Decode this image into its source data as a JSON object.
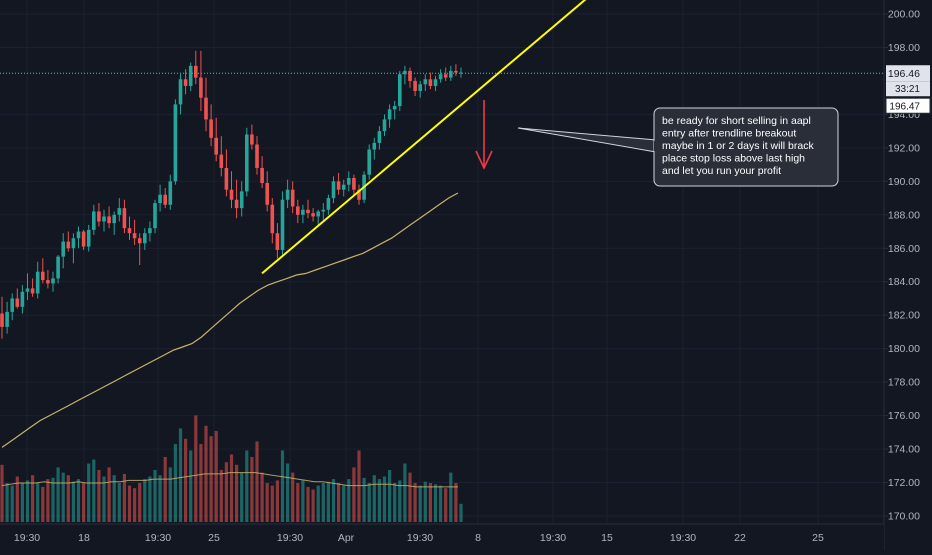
{
  "chart_data": {
    "type": "candlestick",
    "symbol": "AAPL",
    "ylim": [
      169.5,
      201.2
    ],
    "y_ticks": [
      "200.00",
      "198.00",
      "194.00",
      "192.00",
      "190.00",
      "188.00",
      "186.00",
      "184.00",
      "182.00",
      "180.00",
      "178.00",
      "176.00",
      "174.00",
      "172.00",
      "170.00"
    ],
    "x_ticks": [
      "19:30",
      "18",
      "19:30",
      "25",
      "19:30",
      "Apr",
      "19:30",
      "8",
      "19:30",
      "15",
      "19:30",
      "22",
      "25"
    ],
    "price_labels": {
      "last_price": "196.46",
      "countdown": "33:21",
      "ref_price": "196.47"
    },
    "annotation": [
      "be ready for short selling in aapl",
      "entry after trendline breakout",
      "maybe in 1 or 2 days it will brack",
      "place stop loss above last high",
      "and let you run your profit"
    ],
    "candles": [
      [
        182.1,
        183.1,
        180.6,
        181.3
      ],
      [
        181.3,
        182.8,
        180.9,
        182.2
      ],
      [
        182.2,
        183.3,
        181.7,
        183.0
      ],
      [
        183.0,
        183.6,
        182.4,
        182.5
      ],
      [
        182.5,
        183.8,
        182.1,
        183.4
      ],
      [
        183.4,
        184.5,
        182.9,
        183.6
      ],
      [
        183.6,
        184.2,
        183.1,
        183.3
      ],
      [
        183.3,
        185.2,
        183.0,
        184.6
      ],
      [
        184.6,
        185.4,
        183.9,
        184.1
      ],
      [
        184.1,
        184.7,
        183.6,
        183.9
      ],
      [
        183.9,
        184.6,
        183.4,
        184.2
      ],
      [
        184.2,
        185.6,
        183.9,
        185.5
      ],
      [
        185.5,
        186.9,
        184.8,
        186.4
      ],
      [
        186.4,
        187.0,
        185.8,
        186.0
      ],
      [
        186.0,
        186.9,
        185.1,
        186.6
      ],
      [
        186.6,
        187.3,
        186.0,
        187.0
      ],
      [
        187.0,
        187.1,
        185.9,
        186.1
      ],
      [
        186.1,
        187.4,
        185.8,
        187.1
      ],
      [
        187.1,
        188.6,
        186.8,
        188.2
      ],
      [
        188.2,
        188.7,
        187.3,
        187.6
      ],
      [
        187.6,
        188.3,
        187.0,
        187.9
      ],
      [
        187.9,
        188.5,
        187.2,
        187.5
      ],
      [
        187.5,
        188.2,
        186.8,
        188.0
      ],
      [
        188.0,
        189.0,
        187.6,
        188.4
      ],
      [
        188.4,
        188.9,
        186.9,
        187.2
      ],
      [
        187.2,
        187.9,
        186.5,
        186.9
      ],
      [
        186.9,
        187.7,
        186.2,
        186.6
      ],
      [
        186.6,
        186.9,
        185.0,
        186.3
      ],
      [
        186.3,
        187.2,
        185.9,
        186.9
      ],
      [
        186.9,
        187.6,
        186.4,
        187.2
      ],
      [
        187.2,
        188.9,
        186.9,
        188.7
      ],
      [
        188.7,
        189.8,
        188.2,
        189.2
      ],
      [
        189.2,
        189.6,
        188.4,
        188.6
      ],
      [
        188.6,
        190.4,
        188.3,
        190.0
      ],
      [
        190.0,
        194.9,
        189.8,
        194.6
      ],
      [
        194.6,
        196.5,
        194.0,
        196.1
      ],
      [
        196.1,
        196.7,
        195.2,
        195.7
      ],
      [
        195.7,
        197.1,
        195.4,
        196.9
      ],
      [
        196.9,
        197.8,
        195.8,
        196.2
      ],
      [
        196.2,
        197.8,
        194.2,
        195.0
      ],
      [
        195.0,
        196.2,
        193.0,
        193.7
      ],
      [
        193.7,
        194.6,
        192.1,
        192.6
      ],
      [
        192.6,
        193.8,
        191.2,
        191.6
      ],
      [
        191.6,
        192.7,
        190.3,
        190.8
      ],
      [
        190.8,
        191.9,
        189.1,
        189.5
      ],
      [
        189.5,
        190.6,
        188.4,
        188.9
      ],
      [
        188.9,
        190.1,
        187.8,
        188.4
      ],
      [
        188.4,
        190.0,
        187.9,
        189.4
      ],
      [
        189.4,
        193.2,
        189.1,
        192.8
      ],
      [
        192.8,
        193.4,
        191.9,
        192.2
      ],
      [
        192.2,
        192.7,
        190.4,
        190.8
      ],
      [
        190.8,
        191.5,
        189.6,
        189.9
      ],
      [
        189.9,
        190.6,
        188.2,
        188.6
      ],
      [
        188.6,
        189.0,
        186.3,
        186.9
      ],
      [
        186.9,
        187.5,
        185.4,
        185.9
      ],
      [
        185.9,
        189.4,
        185.5,
        188.9
      ],
      [
        188.9,
        190.1,
        188.4,
        189.5
      ],
      [
        189.5,
        190.0,
        188.1,
        188.5
      ],
      [
        188.5,
        188.9,
        187.5,
        188.0
      ],
      [
        188.0,
        188.6,
        187.5,
        188.3
      ],
      [
        188.3,
        188.9,
        187.8,
        188.1
      ],
      [
        188.1,
        188.4,
        187.6,
        187.9
      ],
      [
        187.9,
        188.3,
        187.4,
        188.2
      ],
      [
        188.2,
        188.7,
        187.7,
        188.3
      ],
      [
        188.3,
        189.2,
        188.0,
        189.0
      ],
      [
        189.0,
        190.3,
        188.7,
        190.0
      ],
      [
        190.0,
        190.5,
        189.2,
        189.5
      ],
      [
        189.5,
        190.1,
        189.1,
        189.8
      ],
      [
        189.8,
        190.6,
        189.4,
        190.2
      ],
      [
        190.2,
        190.4,
        189.2,
        189.5
      ],
      [
        189.5,
        189.8,
        188.6,
        188.9
      ],
      [
        188.9,
        190.6,
        188.7,
        190.4
      ],
      [
        190.4,
        192.2,
        190.1,
        191.9
      ],
      [
        191.9,
        192.6,
        191.3,
        192.3
      ],
      [
        192.3,
        193.3,
        191.9,
        193.0
      ],
      [
        193.0,
        194.0,
        192.7,
        193.7
      ],
      [
        193.7,
        194.6,
        193.2,
        194.3
      ],
      [
        194.3,
        194.8,
        193.7,
        194.5
      ],
      [
        194.5,
        196.6,
        194.2,
        196.4
      ],
      [
        196.4,
        196.9,
        195.8,
        196.6
      ],
      [
        196.6,
        196.8,
        195.6,
        196.0
      ],
      [
        196.0,
        196.2,
        195.1,
        195.4
      ],
      [
        195.4,
        196.0,
        195.0,
        195.8
      ],
      [
        195.8,
        196.4,
        195.4,
        196.1
      ],
      [
        196.1,
        196.5,
        195.5,
        195.7
      ],
      [
        195.7,
        196.3,
        195.4,
        196.1
      ],
      [
        196.1,
        196.7,
        195.9,
        196.4
      ],
      [
        196.4,
        196.8,
        196.0,
        196.2
      ],
      [
        196.2,
        196.9,
        196.0,
        196.6
      ],
      [
        196.6,
        197.0,
        196.3,
        196.5
      ],
      [
        196.5,
        196.8,
        196.2,
        196.5
      ]
    ],
    "sma_long": [
      174.1,
      174.5,
      174.9,
      175.3,
      175.7,
      176.0,
      176.3,
      176.6,
      176.9,
      177.2,
      177.5,
      177.8,
      178.1,
      178.4,
      178.7,
      179.0,
      179.3,
      179.6,
      179.9,
      180.1,
      180.3,
      180.7,
      181.2,
      181.7,
      182.2,
      182.7,
      183.1,
      183.5,
      183.8,
      184.0,
      184.2,
      184.4,
      184.5,
      184.7,
      184.9,
      185.1,
      185.3,
      185.5,
      185.7,
      186.0,
      186.3,
      186.6,
      187.0,
      187.4,
      187.8,
      188.2,
      188.6,
      189.0,
      189.3
    ],
    "volume": [
      0.44,
      0.3,
      0.28,
      0.35,
      0.3,
      0.32,
      0.36,
      0.3,
      0.27,
      0.33,
      0.34,
      0.42,
      0.38,
      0.36,
      0.31,
      0.33,
      0.3,
      0.45,
      0.48,
      0.4,
      0.35,
      0.42,
      0.36,
      0.3,
      0.37,
      0.28,
      0.26,
      0.3,
      0.33,
      0.35,
      0.4,
      0.36,
      0.5,
      0.42,
      0.6,
      0.72,
      0.64,
      0.55,
      0.82,
      0.6,
      0.74,
      0.66,
      0.7,
      0.4,
      0.46,
      0.52,
      0.44,
      0.38,
      0.55,
      0.5,
      0.62,
      0.38,
      0.3,
      0.28,
      0.32,
      0.55,
      0.45,
      0.38,
      0.3,
      0.32,
      0.27,
      0.25,
      0.28,
      0.3,
      0.31,
      0.33,
      0.3,
      0.28,
      0.33,
      0.42,
      0.55,
      0.34,
      0.3,
      0.36,
      0.33,
      0.35,
      0.4,
      0.3,
      0.32,
      0.45,
      0.38,
      0.3,
      0.28,
      0.31,
      0.3,
      0.29,
      0.28,
      0.26,
      0.38,
      0.3,
      0.14
    ],
    "volume_ma": [
      0.28,
      0.29,
      0.3,
      0.3,
      0.3,
      0.31,
      0.3,
      0.3,
      0.3,
      0.31,
      0.3,
      0.3,
      0.3,
      0.31,
      0.31,
      0.32,
      0.32,
      0.32,
      0.33,
      0.33,
      0.33,
      0.34,
      0.35,
      0.36,
      0.37,
      0.37,
      0.37,
      0.38,
      0.38,
      0.38,
      0.38,
      0.37,
      0.36,
      0.35,
      0.34,
      0.33,
      0.32,
      0.31,
      0.31,
      0.3,
      0.29,
      0.28,
      0.28,
      0.28,
      0.29,
      0.29,
      0.29,
      0.28,
      0.28,
      0.27,
      0.27,
      0.27,
      0.27,
      0.27,
      0.27
    ],
    "trendline": [
      [
        185.2,
        184.5
      ],
      [
        201.2,
        198.4
      ]
    ],
    "resistance_level": 196.46,
    "colors": {
      "up": "#26a69a",
      "down": "#ef5350",
      "sma": "#c8b26b",
      "trendline": "#ffff00",
      "arrow": "#f23645",
      "grid": "#1c2030",
      "axis_text": "#b2b5be",
      "level": "#4cc9c0"
    }
  }
}
